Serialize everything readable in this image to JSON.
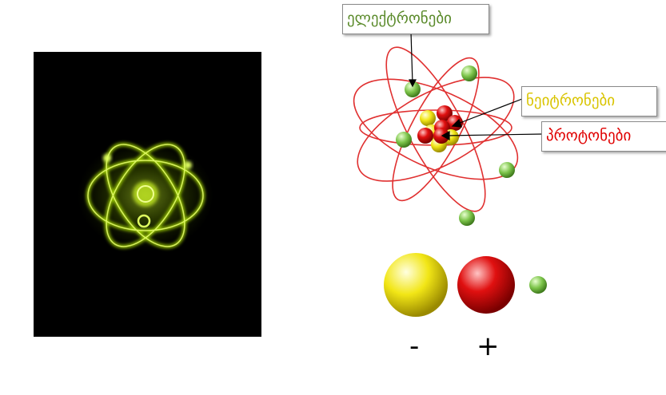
{
  "labels": {
    "electrons": "ელექტრონები",
    "neutrons": "ნეიტრონები",
    "protons": "პროტონები"
  },
  "legend": {
    "minus": "-",
    "plus": "+"
  },
  "colors": {
    "electron_green": "#7cc44a",
    "proton_red": "#e01010",
    "neutron_yellow": "#f2e616",
    "orbit_red": "#e03030",
    "photo_background": "#000000",
    "glow_green": "#b8f000",
    "electrons_label": "#5a8a2a",
    "neutrons_label": "#d9c400",
    "protons_label": "#e00000"
  }
}
